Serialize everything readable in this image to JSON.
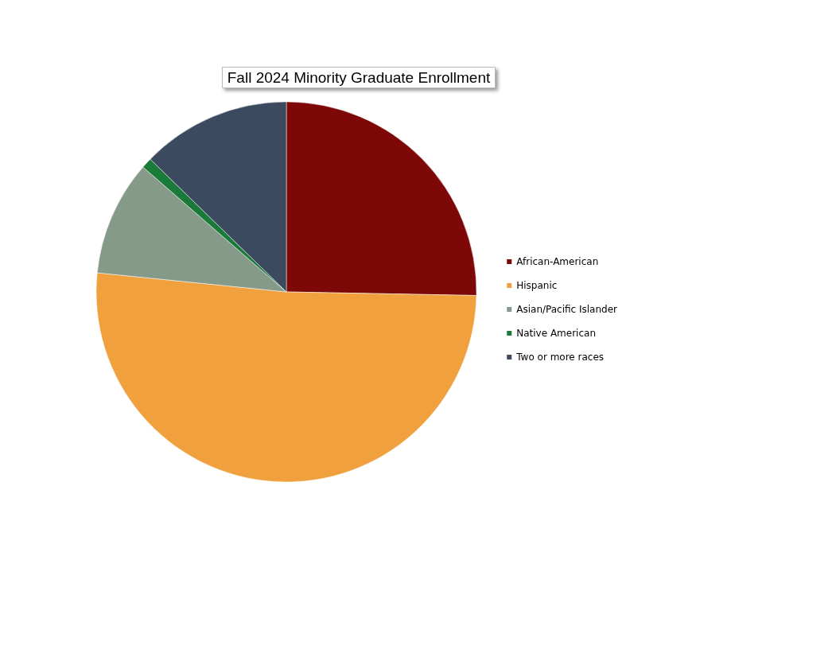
{
  "chart_data": {
    "type": "pie",
    "title": "Fall 2024 Minority Graduate Enrollment",
    "categories": [
      "African-American",
      "Hispanic",
      "Asian/Pacific Islander",
      "Native American",
      "Two or more races"
    ],
    "values": [
      25.3,
      51.3,
      9.8,
      0.9,
      12.7
    ],
    "colors": [
      "#7e0808",
      "#f0a03c",
      "#869a8a",
      "#1a7a3a",
      "#3c4a60"
    ],
    "legend": "right"
  }
}
